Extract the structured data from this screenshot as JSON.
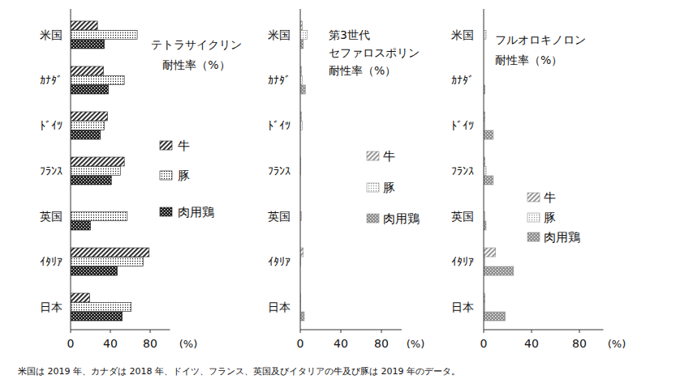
{
  "chart_data": [
    {
      "type": "bar",
      "orientation": "horizontal",
      "title": "テトラサイクリン\n耐性率（%）",
      "categories": [
        "米国",
        "ｶﾅﾀﾞ",
        "ﾄﾞｲﾂ",
        "ﾌﾗﾝｽ",
        "英国",
        "ｲﾀﾘｱ",
        "日本"
      ],
      "series": [
        {
          "name": "牛",
          "color": "#1a1a1a",
          "values": [
            27,
            33,
            37,
            54,
            null,
            79,
            19
          ]
        },
        {
          "name": "豚",
          "color": "#1a1a1a",
          "values": [
            67,
            54,
            34,
            50,
            57,
            73,
            61
          ]
        },
        {
          "name": "肉用鶏",
          "color": "#1a1a1a",
          "values": [
            34,
            38,
            30,
            41,
            20,
            47,
            52
          ]
        }
      ],
      "xlim": [
        0,
        100
      ],
      "xticks": [
        0,
        40,
        80
      ],
      "xlabel": "(%)",
      "legend": "right",
      "grid": false
    },
    {
      "type": "bar",
      "orientation": "horizontal",
      "title": "第3世代\nセファロスポリン\n耐性率（%）",
      "categories": [
        "米国",
        "ｶﾅﾀﾞ",
        "ﾄﾞｲﾂ",
        "ﾌﾗﾝｽ",
        "英国",
        "ｲﾀﾘｱ",
        "日本"
      ],
      "series": [
        {
          "name": "牛",
          "color": "#8c8c8c",
          "values": [
            2,
            1,
            1,
            0.5,
            null,
            3,
            0.5
          ]
        },
        {
          "name": "豚",
          "color": "#8c8c8c",
          "values": [
            7,
            2,
            2,
            0.5,
            1,
            0.5,
            0.5
          ]
        },
        {
          "name": "肉用鶏",
          "color": "#8c8c8c",
          "values": [
            3,
            5,
            0,
            0,
            0,
            0,
            4
          ]
        }
      ],
      "xlim": [
        0,
        100
      ],
      "xticks": [
        0,
        40,
        80
      ],
      "xlabel": "(%)",
      "legend": "right",
      "grid": false
    },
    {
      "type": "bar",
      "orientation": "horizontal",
      "title": "フルオロキノロン\n耐性率（%）",
      "categories": [
        "米国",
        "ｶﾅﾀﾞ",
        "ﾄﾞｲﾂ",
        "ﾌﾗﾝｽ",
        "英国",
        "ｲﾀﾘｱ",
        "日本"
      ],
      "series": [
        {
          "name": "牛",
          "color": "#8c8c8c",
          "values": [
            0,
            0,
            1,
            1,
            null,
            10,
            1
          ]
        },
        {
          "name": "豚",
          "color": "#8c8c8c",
          "values": [
            2,
            0,
            1,
            2,
            1,
            1,
            1
          ]
        },
        {
          "name": "肉用鶏",
          "color": "#8c8c8c",
          "values": [
            0,
            1,
            8,
            8,
            2,
            25,
            18
          ]
        }
      ],
      "xlim": [
        0,
        100
      ],
      "xticks": [
        0,
        40,
        80
      ],
      "xlabel": "(%)",
      "legend": "right",
      "grid": false
    }
  ],
  "footnote": "米国は 2019 年、カナダは 2018 年、ドイツ、フランス、英国及びイタリアの牛及び豚は 2019 年のデータ。"
}
